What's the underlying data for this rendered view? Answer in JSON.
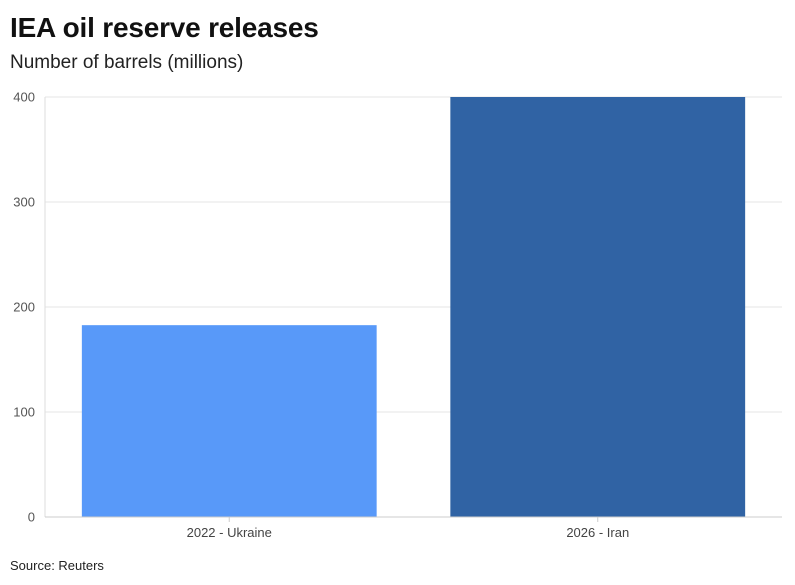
{
  "chart_data": {
    "type": "bar",
    "title": "IEA oil reserve releases",
    "subtitle": "Number of barrels (millions)",
    "categories": [
      "2022 - Ukraine",
      "2026 - Iran"
    ],
    "values": [
      182.7,
      400
    ],
    "colors": [
      "#5899f9",
      "#3063a4"
    ],
    "ylim": [
      0,
      400
    ],
    "yticks": [
      "0",
      "100",
      "200",
      "300",
      "400"
    ],
    "grid": true,
    "legend": "none",
    "xlabel": "",
    "ylabel": "",
    "source": "Source: Reuters"
  }
}
